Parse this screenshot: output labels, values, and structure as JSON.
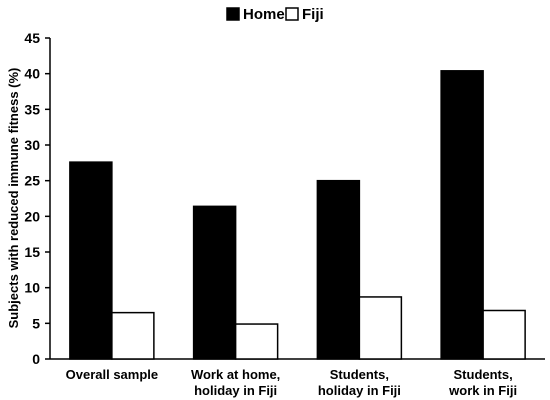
{
  "chart_data": {
    "type": "bar",
    "title": "",
    "xlabel": "",
    "ylabel": "Subjects with reduced immune fitness (%)",
    "ylim": [
      0,
      45
    ],
    "yticks": [
      0,
      5,
      10,
      15,
      20,
      25,
      30,
      35,
      40,
      45
    ],
    "grid": false,
    "legend_position": "top-center",
    "categories": [
      [
        "Overall sample"
      ],
      [
        "Work at home,",
        "holiday in Fiji"
      ],
      [
        "Students,",
        "holiday in Fiji"
      ],
      [
        "Students,",
        "work in Fiji"
      ]
    ],
    "series": [
      {
        "name": "Home",
        "color": "#000000",
        "values": [
          27.6,
          21.4,
          25.0,
          40.4
        ]
      },
      {
        "name": "Fiji",
        "color": "#ffffff",
        "values": [
          6.5,
          4.9,
          8.7,
          6.8
        ]
      }
    ]
  }
}
